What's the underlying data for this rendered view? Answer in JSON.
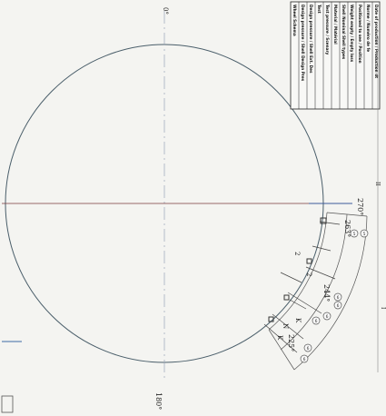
{
  "drawing": {
    "angles": {
      "top": "0°",
      "right": "270°",
      "bottom": "180°",
      "nozzle_a": "263°",
      "nozzle_b": "244°",
      "nozzle_c": "225°"
    },
    "marks": {
      "k1": "K",
      "k2": "K",
      "n1": "N",
      "mark_2a": "2",
      "mark_2b": "2"
    },
    "balloons": [
      "5",
      "5",
      "6",
      "6",
      "6",
      "6",
      "6",
      "6"
    ],
    "title_block": {
      "rows": [
        "Wheel Schema",
        "Design pressure / Shell Design Pres",
        "Design pressure / Shell Ext. Des",
        "Test",
        "Test pressure / Scenary",
        "Material / Matérial",
        "Shell Nominal Shell types",
        "Weight empty / Empty loss",
        "Positioned to see / Position",
        "Norme / Numéro de fe",
        "Date of production / Production dt"
      ]
    },
    "side_ticks": [
      "II",
      "I"
    ]
  }
}
